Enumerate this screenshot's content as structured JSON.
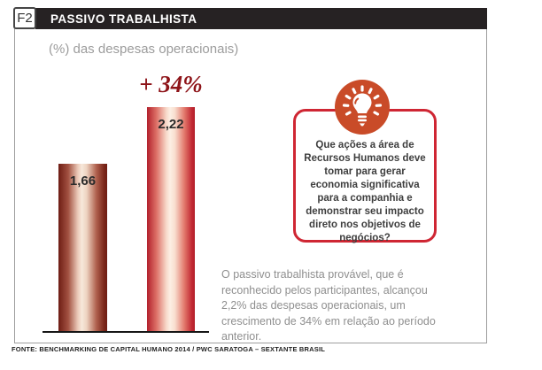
{
  "figure": {
    "tag": "F2",
    "title": "PASSIVO TRABALHISTA",
    "subtitle": "(%) das despesas operacionais)"
  },
  "chart_data": {
    "type": "bar",
    "title": "PASSIVO TRABALHISTA",
    "subtitle": "(%) das despesas operacionais)",
    "values": [
      1.66,
      2.22
    ],
    "value_labels": [
      "1,66",
      "2,22"
    ],
    "annotation": "+ 34%",
    "axes": "none",
    "grid": false,
    "legend": false,
    "baseline_shown": true
  },
  "callout": {
    "icon": "lightbulb-icon",
    "question": "Que ações a área de Recursos Humanos deve tomar para gerar economia significativa para a companhia e demonstrar seu impacto direto nos objetivos de negócios?"
  },
  "body_text": "O passivo trabalhista provável, que é reconhecido pelos participantes, alcançou 2,2% das despesas operacionais, um crescimento de 34% em relação ao período anterior.",
  "footer": {
    "source": "FONTE: BENCHMARKING DE CAPITAL HUMANO 2014 / PWC SARATOGA – SEXTANTE BRASIL"
  },
  "colors": {
    "header_bg": "#262223",
    "accent_red": "#CF2633",
    "growth_red": "#8E1419",
    "bulb_circle": "#C94B28",
    "bar1_edge": "#6E1D14",
    "bar1_center": "#F7E8DB",
    "bar2_edge": "#B2202B",
    "bar2_center": "#FCEFE4",
    "subtitle_gray": "#9C9C9C",
    "body_gray": "#8F8F8F"
  }
}
